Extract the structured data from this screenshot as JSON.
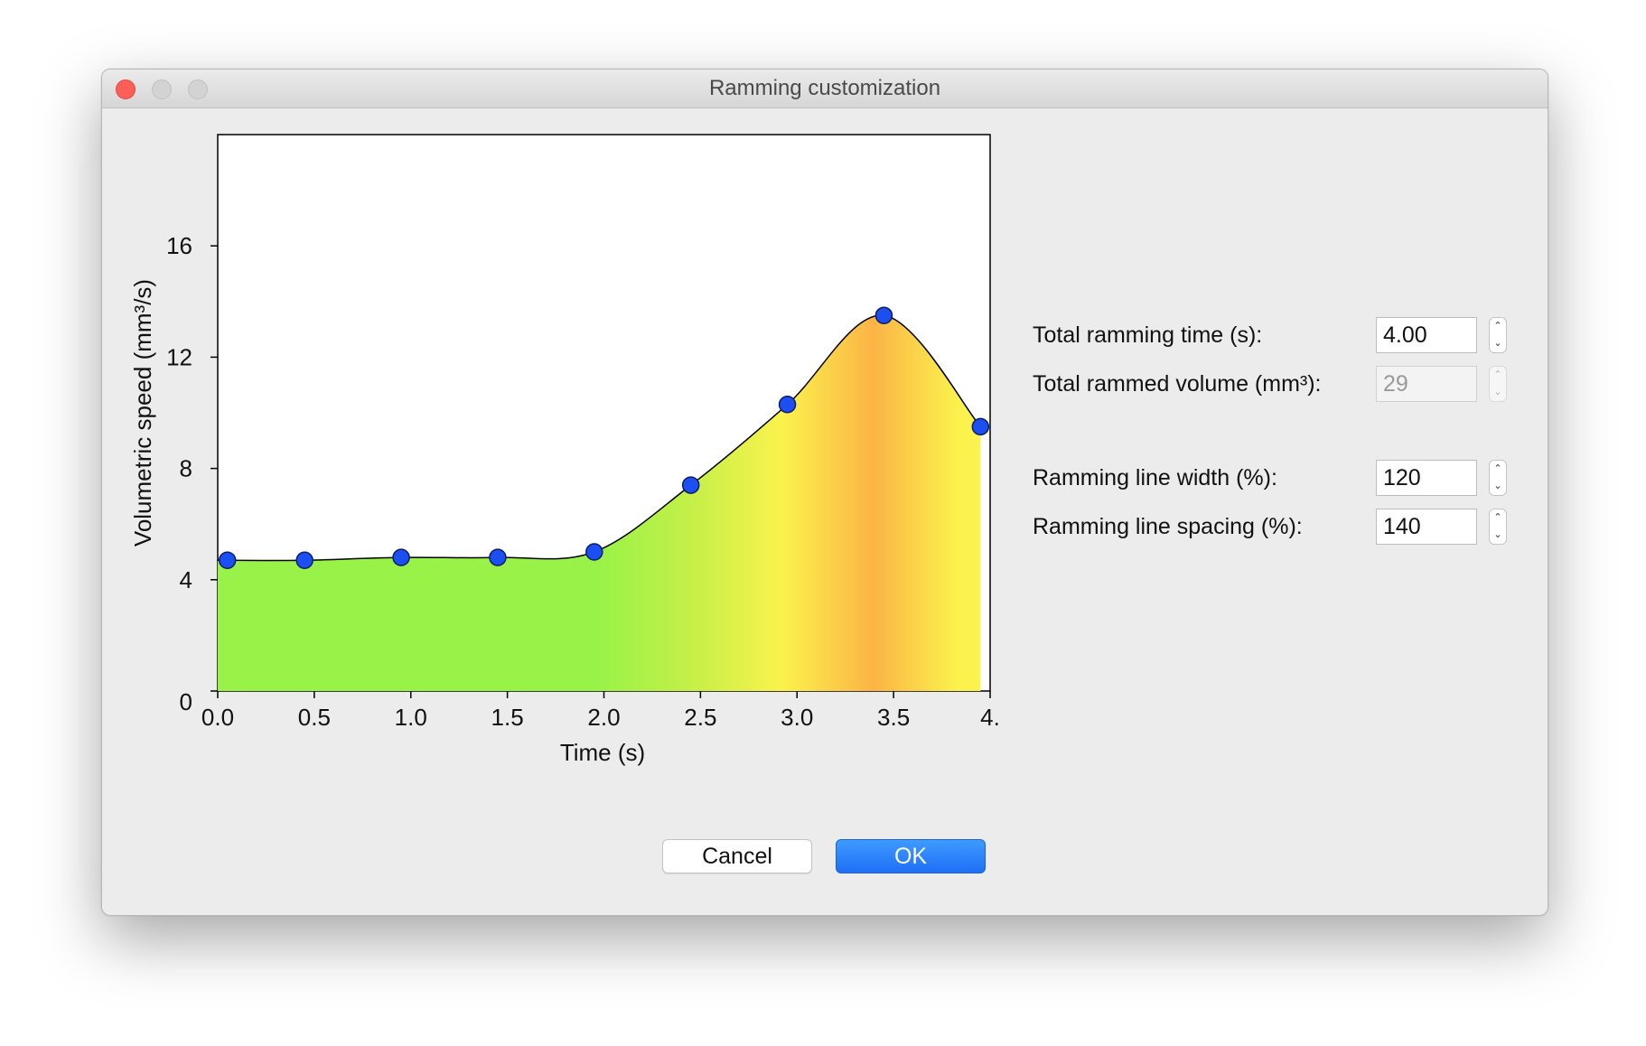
{
  "window": {
    "title": "Ramming customization"
  },
  "chart_data": {
    "type": "area",
    "title": "",
    "xlabel": "Time (s)",
    "ylabel": "Volumetric speed (mm³/s)",
    "xlim": [
      0,
      4.0
    ],
    "ylim": [
      0,
      20
    ],
    "x_tick_labels": [
      "0.0",
      "0.5",
      "1.0",
      "1.5",
      "2.0",
      "2.5",
      "3.0",
      "3.5",
      "4."
    ],
    "y_tick_labels": [
      "0",
      "4",
      "8",
      "12",
      "16"
    ],
    "x_ticks": [
      0,
      0.5,
      1.0,
      1.5,
      2.0,
      2.5,
      3.0,
      3.5,
      4.0
    ],
    "y_ticks": [
      0,
      4,
      8,
      12,
      16
    ],
    "grid": false,
    "series": [
      {
        "x": [
          0.05,
          0.45,
          0.95,
          1.45,
          1.95,
          2.45,
          2.95,
          3.45,
          3.95
        ],
        "values": [
          4.7,
          4.7,
          4.8,
          4.8,
          5.0,
          7.4,
          10.3,
          13.5,
          9.5
        ]
      }
    ],
    "fill_colors": [
      "#99f248",
      "#c4f048",
      "#fbf24d",
      "#fbb445",
      "#fbf24d"
    ],
    "point_color": "#1c4ff2"
  },
  "settings": {
    "ramming_time": {
      "label": "Total ramming time (s):",
      "value": "4.00"
    },
    "rammed_volume": {
      "label": "Total rammed volume (mm³):",
      "value": "29"
    },
    "line_width": {
      "label": "Ramming line width (%):",
      "value": "120"
    },
    "line_spacing": {
      "label": "Ramming line spacing (%):",
      "value": "140"
    }
  },
  "buttons": {
    "cancel": "Cancel",
    "ok": "OK"
  },
  "icons": {
    "close": "close-icon",
    "minimize": "minimize-icon",
    "zoom": "zoom-icon",
    "stepper_up": "chevron-up-icon",
    "stepper_down": "chevron-down-icon"
  }
}
